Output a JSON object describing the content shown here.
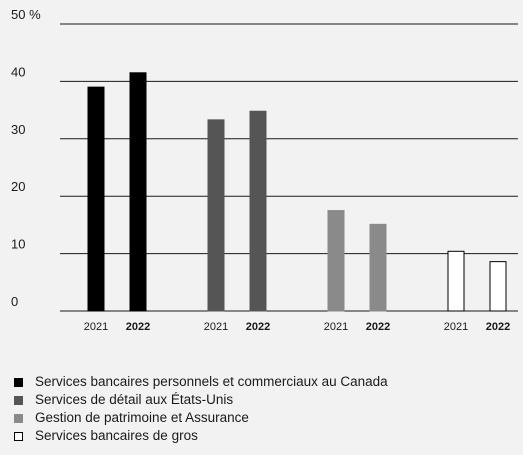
{
  "chart_data": {
    "type": "bar",
    "title": "",
    "xlabel": "",
    "ylabel": "",
    "ylim": [
      0,
      50
    ],
    "yticks": [
      {
        "value": 0,
        "label": "0"
      },
      {
        "value": 10,
        "label": "10"
      },
      {
        "value": 20,
        "label": "20"
      },
      {
        "value": 30,
        "label": "30"
      },
      {
        "value": 40,
        "label": "40"
      },
      {
        "value": 50,
        "label": "50 %"
      }
    ],
    "grid": true,
    "legend_position": "bottom-left",
    "groups": [
      {
        "name": "Services bancaires personnels et commerciaux au Canada",
        "color": "#000000",
        "border": "#000000",
        "bars": [
          {
            "year": "2021",
            "value": 39,
            "bold": false
          },
          {
            "year": "2022",
            "value": 41.5,
            "bold": true
          }
        ]
      },
      {
        "name": "Services de détail aux États-Unis",
        "color": "#555555",
        "border": "#555555",
        "bars": [
          {
            "year": "2021",
            "value": 33.3,
            "bold": false
          },
          {
            "year": "2022",
            "value": 34.8,
            "bold": true
          }
        ]
      },
      {
        "name": "Gestion de patrimoine et Assurance",
        "color": "#8a8a8a",
        "border": "#8a8a8a",
        "bars": [
          {
            "year": "2021",
            "value": 17.5,
            "bold": false
          },
          {
            "year": "2022",
            "value": 15.1,
            "bold": true
          }
        ]
      },
      {
        "name": "Services bancaires de gros",
        "color": "#ffffff",
        "border": "#000000",
        "bars": [
          {
            "year": "2021",
            "value": 10.4,
            "bold": false
          },
          {
            "year": "2022",
            "value": 8.6,
            "bold": true
          }
        ]
      }
    ]
  }
}
